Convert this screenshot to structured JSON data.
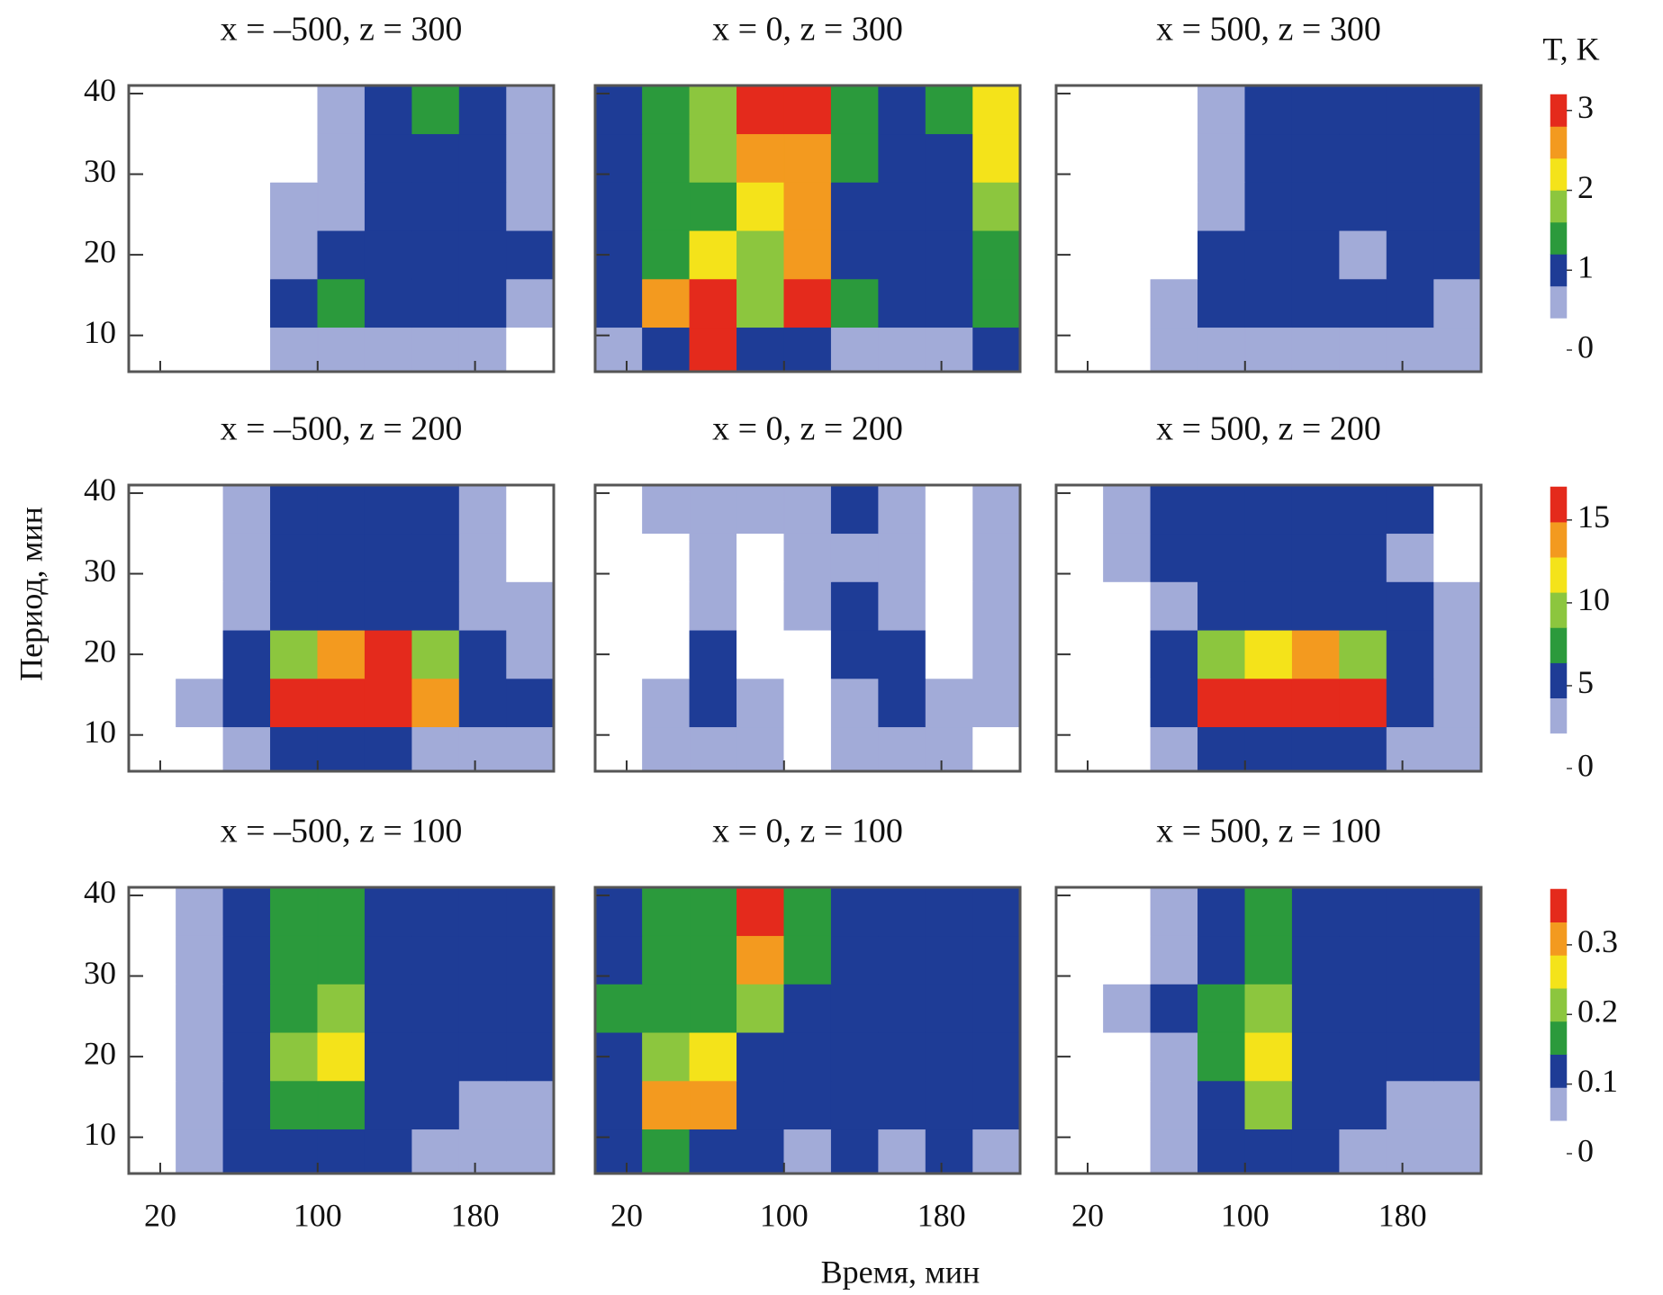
{
  "chart_data": {
    "type": "heatmap",
    "xlabel": "Время, мин",
    "ylabel": "Период, мин",
    "colorbar_title": "T, K",
    "xlim": [
      4,
      220
    ],
    "ylim": [
      5.5,
      41
    ],
    "xticks": [
      20,
      100,
      180
    ],
    "yticks": [
      10,
      20,
      30,
      40
    ],
    "x": [
      16,
      40,
      64,
      88,
      112,
      136,
      160,
      184,
      208
    ],
    "y": [
      8,
      14,
      20,
      26,
      32,
      38
    ],
    "colormap": [
      "#ffffff",
      "#a2abd8",
      "#1e3c96",
      "#2b9a3c",
      "#8cc63e",
      "#f4e31a",
      "#f39a1f",
      "#e42a1c"
    ],
    "rows": [
      {
        "colorbar": {
          "lim": [
            0,
            3.2
          ],
          "ticks": [
            0,
            1,
            2,
            3
          ]
        },
        "panels": [
          {
            "title": "x = –500, z = 300",
            "z": [
              [
                0.2,
                0.2,
                0.2,
                0.5,
                0.6,
                0.5,
                0.5,
                0.4,
                0.3
              ],
              [
                0.2,
                0.2,
                0.3,
                0.9,
                1.3,
                0.9,
                1.0,
                0.9,
                0.6
              ],
              [
                0.2,
                0.2,
                0.2,
                0.6,
                0.9,
                0.9,
                1.0,
                1.0,
                0.8
              ],
              [
                0.2,
                0.2,
                0.2,
                0.5,
                0.6,
                0.9,
                1.0,
                0.9,
                0.6
              ],
              [
                0.2,
                0.2,
                0.2,
                0.3,
                0.6,
                0.9,
                1.1,
                1.0,
                0.5
              ],
              [
                0.2,
                0.2,
                0.2,
                0.3,
                0.6,
                0.9,
                1.3,
                1.0,
                0.5
              ]
            ]
          },
          {
            "title": "x = 0, z = 300",
            "z": [
              [
                0.6,
                1.0,
                2.9,
                1.2,
                0.8,
                0.6,
                0.7,
                0.6,
                0.9
              ],
              [
                0.9,
                2.8,
                3.0,
                1.6,
                2.9,
                1.3,
                0.9,
                1.0,
                1.4
              ],
              [
                0.9,
                1.4,
                2.4,
                1.9,
                2.6,
                1.1,
                1.0,
                1.0,
                1.4
              ],
              [
                0.9,
                1.3,
                1.4,
                2.2,
                2.6,
                1.2,
                1.0,
                1.2,
                1.6
              ],
              [
                0.8,
                1.4,
                1.6,
                2.5,
                2.8,
                1.3,
                1.0,
                1.1,
                2.1
              ],
              [
                0.8,
                1.5,
                1.7,
                3.0,
                3.0,
                1.5,
                1.0,
                1.4,
                2.3
              ]
            ]
          },
          {
            "title": "x = 500, z = 300",
            "z": [
              [
                0.2,
                0.2,
                0.4,
                0.6,
                0.5,
                0.5,
                0.5,
                0.5,
                0.4
              ],
              [
                0.2,
                0.2,
                0.5,
                1.2,
                0.9,
                1.0,
                1.0,
                0.9,
                0.7
              ],
              [
                0.2,
                0.2,
                0.3,
                0.9,
                0.9,
                1.0,
                0.7,
                1.0,
                0.8
              ],
              [
                0.2,
                0.2,
                0.2,
                0.6,
                1.0,
                0.9,
                1.0,
                0.9,
                0.9
              ],
              [
                0.2,
                0.2,
                0.2,
                0.5,
                0.9,
                1.0,
                1.0,
                1.0,
                0.9
              ],
              [
                0.2,
                0.2,
                0.2,
                0.5,
                0.8,
                1.0,
                1.0,
                1.1,
                0.9
              ]
            ]
          }
        ]
      },
      {
        "colorbar": {
          "lim": [
            0,
            17
          ],
          "ticks": [
            0,
            5,
            10,
            15
          ]
        },
        "panels": [
          {
            "title": "x = –500, z = 200",
            "z": [
              [
                1,
                1,
                3,
                5,
                5,
                5,
                4,
                3,
                3
              ],
              [
                1,
                3,
                6,
                16,
                16,
                16,
                14,
                5,
                5
              ],
              [
                1,
                2,
                5,
                9,
                14,
                16,
                9,
                5,
                4
              ],
              [
                1,
                2,
                4,
                5,
                6,
                5,
                5,
                4,
                3
              ],
              [
                1,
                2,
                4,
                5,
                5,
                5,
                5,
                3,
                2
              ],
              [
                1,
                2,
                3,
                5,
                5,
                5,
                5,
                4,
                2
              ]
            ]
          },
          {
            "title": "x = 0, z = 200",
            "z": [
              [
                1,
                3,
                3,
                4,
                2,
                3,
                4,
                3,
                2
              ],
              [
                1,
                3,
                5,
                3,
                1,
                4,
                5,
                3,
                3
              ],
              [
                1,
                2,
                5,
                2,
                2,
                5,
                5,
                2,
                3
              ],
              [
                1,
                1,
                3,
                1,
                3,
                5,
                3,
                2,
                3
              ],
              [
                1,
                1,
                3,
                1,
                3,
                3,
                3,
                1,
                3
              ],
              [
                1,
                3,
                3,
                3,
                3,
                5,
                4,
                1,
                3
              ]
            ]
          },
          {
            "title": "x = 500, z = 200",
            "z": [
              [
                1,
                2,
                3,
                6,
                5,
                5,
                5,
                4,
                3
              ],
              [
                1,
                2,
                6,
                16,
                15,
                16,
                16,
                6,
                4
              ],
              [
                1,
                2,
                5,
                9,
                12,
                13,
                10,
                5,
                4
              ],
              [
                1,
                2,
                4,
                5,
                6,
                6,
                5,
                5,
                3
              ],
              [
                1,
                3,
                5,
                5,
                5,
                5,
                5,
                4,
                2
              ],
              [
                1,
                3,
                5,
                5,
                5,
                6,
                5,
                5,
                2
              ]
            ]
          }
        ]
      },
      {
        "colorbar": {
          "lim": [
            0,
            0.38
          ],
          "ticks": [
            0,
            0.1,
            0.2,
            0.3
          ]
        },
        "panels": [
          {
            "title": "x = –500, z = 100",
            "z": [
              [
                0.03,
                0.06,
                0.11,
                0.12,
                0.11,
                0.11,
                0.08,
                0.06,
                0.06
              ],
              [
                0.03,
                0.06,
                0.12,
                0.18,
                0.18,
                0.13,
                0.11,
                0.06,
                0.09
              ],
              [
                0.03,
                0.06,
                0.12,
                0.2,
                0.25,
                0.13,
                0.11,
                0.1,
                0.11
              ],
              [
                0.03,
                0.06,
                0.12,
                0.17,
                0.2,
                0.13,
                0.12,
                0.11,
                0.11
              ],
              [
                0.03,
                0.06,
                0.11,
                0.16,
                0.17,
                0.12,
                0.12,
                0.11,
                0.11
              ],
              [
                0.03,
                0.07,
                0.11,
                0.16,
                0.16,
                0.12,
                0.12,
                0.11,
                0.12
              ]
            ]
          },
          {
            "title": "x = 0, z = 100",
            "z": [
              [
                0.1,
                0.18,
                0.12,
                0.11,
                0.08,
                0.11,
                0.08,
                0.11,
                0.07
              ],
              [
                0.1,
                0.31,
                0.3,
                0.12,
                0.11,
                0.11,
                0.1,
                0.12,
                0.1
              ],
              [
                0.12,
                0.2,
                0.27,
                0.13,
                0.12,
                0.12,
                0.1,
                0.11,
                0.1
              ],
              [
                0.15,
                0.17,
                0.18,
                0.22,
                0.13,
                0.11,
                0.11,
                0.12,
                0.1
              ],
              [
                0.12,
                0.16,
                0.16,
                0.3,
                0.18,
                0.12,
                0.11,
                0.1,
                0.11
              ],
              [
                0.12,
                0.16,
                0.15,
                0.34,
                0.18,
                0.12,
                0.11,
                0.1,
                0.11
              ]
            ]
          },
          {
            "title": "x = 500, z = 100",
            "z": [
              [
                0.03,
                0.03,
                0.06,
                0.1,
                0.11,
                0.1,
                0.08,
                0.06,
                0.06
              ],
              [
                0.03,
                0.03,
                0.08,
                0.12,
                0.2,
                0.12,
                0.1,
                0.08,
                0.06
              ],
              [
                0.03,
                0.04,
                0.09,
                0.17,
                0.25,
                0.14,
                0.12,
                0.1,
                0.11
              ],
              [
                0.03,
                0.05,
                0.1,
                0.16,
                0.2,
                0.13,
                0.11,
                0.11,
                0.11
              ],
              [
                0.03,
                0.04,
                0.08,
                0.13,
                0.16,
                0.12,
                0.12,
                0.11,
                0.11
              ],
              [
                0.03,
                0.04,
                0.07,
                0.12,
                0.17,
                0.12,
                0.11,
                0.12,
                0.11
              ]
            ]
          }
        ]
      }
    ]
  }
}
